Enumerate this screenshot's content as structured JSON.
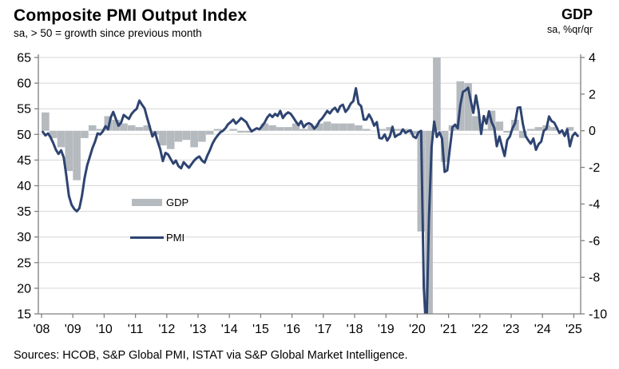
{
  "header": {
    "title": "Composite PMI Output Index",
    "subtitle": "sa, > 50 = growth since previous month",
    "right_title": "GDP",
    "right_subtitle": "sa, %qr/qr"
  },
  "legend": {
    "gdp_label": "GDP",
    "pmi_label": "PMI"
  },
  "footer": {
    "sources": "Sources: HCOB, S&P Global PMI, ISTAT via S&P Global Market  Intelligence."
  },
  "colors": {
    "pmi_line": "#2E4471",
    "gdp_bar": "#B5BABF",
    "gridline": "#D6D6D6",
    "axis": "#808080",
    "text": "#000000",
    "background": "#FFFFFF"
  },
  "chart_data": {
    "type": "combo-bar-line",
    "title": "Composite PMI Output Index vs GDP",
    "left_axis": {
      "series": "PMI",
      "ticks": [
        65,
        60,
        55,
        50,
        45,
        40,
        35,
        30,
        25,
        20,
        15
      ],
      "range": [
        15,
        65
      ]
    },
    "right_axis": {
      "series": "GDP",
      "ticks": [
        4,
        2,
        0,
        -2,
        -4,
        -6,
        -8,
        -10
      ],
      "range": [
        -10,
        4
      ]
    },
    "x_axis": {
      "tick_labels": [
        "'08",
        "'09",
        "'10",
        "'11",
        "'12",
        "'13",
        "'14",
        "'15",
        "'16",
        "'17",
        "'18",
        "'19",
        "'20",
        "'21",
        "'22",
        "'23",
        "'24",
        "'25"
      ],
      "start_year": 2008
    },
    "grid": "horizontal-only",
    "legend_position": "inside-left",
    "series": [
      {
        "name": "GDP",
        "type": "bar",
        "axis": "right",
        "frequency": "quarterly",
        "start": "2008Q1",
        "unit": "% q/q",
        "values_by_year": [
          {
            "year": 2008,
            "values": [
              1.0,
              -0.4,
              -0.9,
              -2.2
            ]
          },
          {
            "year": 2009,
            "values": [
              -2.7,
              -0.4,
              0.3,
              0.1
            ]
          },
          {
            "year": 2010,
            "values": [
              0.8,
              0.6,
              0.4,
              0.3
            ]
          },
          {
            "year": 2011,
            "values": [
              0.2,
              0.3,
              -0.2,
              -0.8
            ]
          },
          {
            "year": 2012,
            "values": [
              -1.0,
              -0.6,
              -0.5,
              -0.9
            ]
          },
          {
            "year": 2013,
            "values": [
              -0.6,
              -0.2,
              0.1,
              0.0
            ]
          },
          {
            "year": 2014,
            "values": [
              0.1,
              -0.1,
              -0.1,
              0.0
            ]
          },
          {
            "year": 2015,
            "values": [
              0.4,
              0.3,
              0.2,
              0.2
            ]
          },
          {
            "year": 2016,
            "values": [
              0.4,
              0.1,
              0.3,
              0.4
            ]
          },
          {
            "year": 2017,
            "values": [
              0.5,
              0.4,
              0.4,
              0.4
            ]
          },
          {
            "year": 2018,
            "values": [
              0.3,
              0.1,
              0.0,
              0.1
            ]
          },
          {
            "year": 2019,
            "values": [
              0.2,
              0.1,
              0.1,
              -0.2
            ]
          },
          {
            "year": 2020,
            "values": [
              -5.5,
              -13.0,
              15.9,
              -1.7
            ]
          },
          {
            "year": 2021,
            "values": [
              0.3,
              2.7,
              2.6,
              0.8
            ]
          },
          {
            "year": 2022,
            "values": [
              0.1,
              1.1,
              0.5,
              -0.1
            ]
          },
          {
            "year": 2023,
            "values": [
              0.6,
              -0.4,
              0.1,
              0.2
            ]
          },
          {
            "year": 2024,
            "values": [
              0.3,
              0.2,
              0.0,
              0.2
            ]
          }
        ]
      },
      {
        "name": "PMI",
        "type": "line",
        "axis": "left",
        "frequency": "monthly",
        "start": "2008-01",
        "unit": "index, 50 = no change",
        "values_by_year": [
          {
            "year": 2008,
            "values": [
              50.5,
              49.8,
              50.2,
              49.4,
              48.3,
              47.0,
              46.2,
              46.9,
              45.5,
              42.0,
              38.0,
              36.3
            ]
          },
          {
            "year": 2009,
            "values": [
              35.5,
              35.0,
              35.6,
              38.0,
              41.5,
              44.0,
              45.6,
              47.3,
              48.6,
              50.2,
              50.0,
              50.6
            ]
          },
          {
            "year": 2010,
            "values": [
              51.6,
              51.0,
              53.3,
              54.4,
              53.0,
              51.7,
              52.3,
              53.8,
              53.4,
              53.0,
              54.0,
              54.6
            ]
          },
          {
            "year": 2011,
            "values": [
              55.0,
              56.6,
              55.8,
              55.1,
              53.2,
              51.4,
              49.6,
              50.4,
              48.6,
              47.1,
              44.8,
              46.4
            ]
          },
          {
            "year": 2012,
            "values": [
              46.1,
              45.2,
              44.3,
              44.9,
              43.8,
              43.4,
              44.6,
              44.0,
              43.5,
              44.2,
              44.9,
              45.4
            ]
          },
          {
            "year": 2013,
            "values": [
              45.7,
              44.9,
              44.5,
              45.8,
              46.9,
              48.2,
              49.1,
              49.8,
              50.4,
              50.7,
              51.2,
              52.0
            ]
          },
          {
            "year": 2014,
            "values": [
              52.4,
              52.9,
              52.1,
              52.6,
              53.2,
              52.8,
              52.4,
              51.4,
              50.6,
              50.9,
              51.2,
              51.0
            ]
          },
          {
            "year": 2015,
            "values": [
              51.6,
              52.3,
              53.3,
              53.9,
              53.4,
              54.0,
              53.6,
              54.6,
              53.2,
              53.9,
              54.3,
              54.0
            ]
          },
          {
            "year": 2016,
            "values": [
              53.3,
              52.5,
              51.8,
              52.6,
              51.4,
              52.0,
              52.2,
              51.9,
              51.1,
              51.6,
              52.6,
              53.1
            ]
          },
          {
            "year": 2017,
            "values": [
              53.8,
              54.6,
              54.1,
              54.8,
              55.2,
              54.4,
              55.5,
              55.8,
              54.4,
              55.0,
              56.0,
              56.5
            ]
          },
          {
            "year": 2018,
            "values": [
              59.0,
              56.0,
              55.5,
              52.9,
              52.9,
              53.9,
              53.0,
              51.7,
              52.4,
              49.3,
              49.2,
              50.0
            ]
          },
          {
            "year": 2019,
            "values": [
              48.8,
              49.6,
              51.5,
              49.5,
              49.9,
              50.1,
              51.0,
              50.3,
              50.6,
              50.8,
              49.6,
              49.3
            ]
          },
          {
            "year": 2020,
            "values": [
              50.4,
              50.7,
              20.2,
              10.9,
              33.9,
              47.6,
              52.5,
              49.5,
              50.4,
              49.2,
              42.7,
              43.0
            ]
          },
          {
            "year": 2021,
            "values": [
              47.2,
              51.4,
              51.9,
              51.2,
              55.7,
              58.3,
              58.6,
              59.1,
              56.6,
              54.2,
              57.6,
              54.7
            ]
          },
          {
            "year": 2022,
            "values": [
              50.1,
              53.6,
              52.1,
              54.5,
              52.4,
              51.3,
              47.7,
              49.6,
              47.6,
              45.8,
              48.9,
              49.6
            ]
          },
          {
            "year": 2023,
            "values": [
              51.2,
              52.2,
              55.2,
              55.3,
              52.0,
              49.7,
              48.9,
              48.2,
              49.2,
              47.0,
              48.1,
              48.6
            ]
          },
          {
            "year": 2024,
            "values": [
              50.7,
              51.1,
              53.5,
              52.6,
              52.3,
              51.3,
              50.3,
              50.8,
              49.7,
              51.0,
              47.7,
              49.7
            ]
          },
          {
            "year": 2025,
            "values": [
              50.3,
              49.7
            ]
          }
        ]
      }
    ]
  }
}
